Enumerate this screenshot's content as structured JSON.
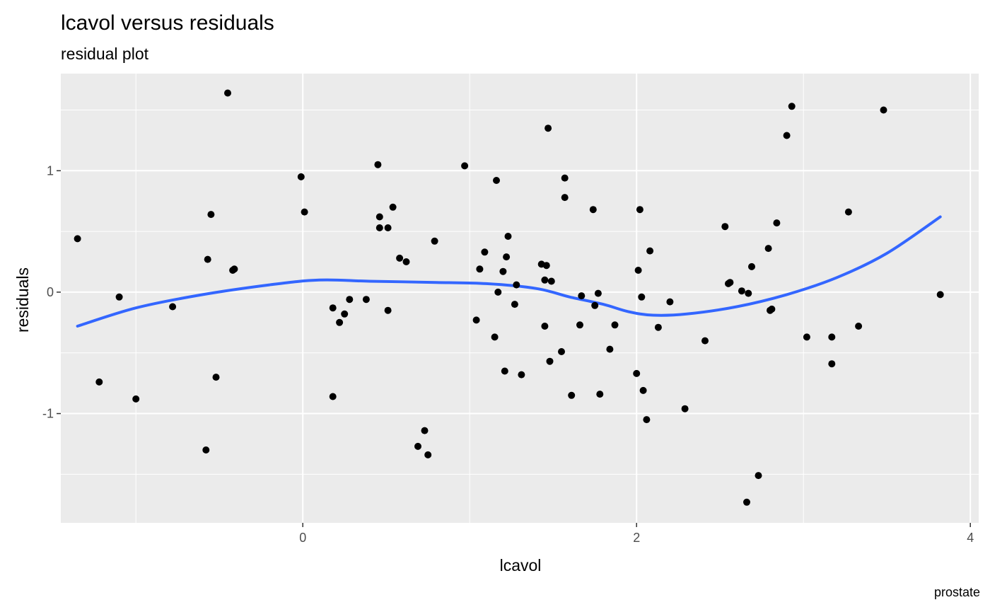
{
  "chart_data": {
    "type": "scatter",
    "title": "lcavol versus residuals",
    "subtitle": "residual plot",
    "xlabel": "lcavol",
    "ylabel": "residuals",
    "caption": "prostate",
    "xlim": [
      -1.45,
      4.05
    ],
    "ylim": [
      -1.9,
      1.8
    ],
    "x_ticks": [
      0,
      2,
      4
    ],
    "x_tick_labels": [
      "0",
      "2",
      "4"
    ],
    "y_ticks": [
      -1,
      0,
      1
    ],
    "y_tick_labels": [
      "-1",
      "0",
      "1"
    ],
    "grid": true,
    "panel_background": "#ebebeb",
    "point_color": "#000000",
    "smooth_color": "#3366ff",
    "points": [
      {
        "x": -1.35,
        "y": 0.44
      },
      {
        "x": -1.22,
        "y": -0.74
      },
      {
        "x": -1.1,
        "y": -0.04
      },
      {
        "x": -1.0,
        "y": -0.88
      },
      {
        "x": -0.78,
        "y": -0.12
      },
      {
        "x": -0.58,
        "y": -1.3
      },
      {
        "x": -0.57,
        "y": 0.27
      },
      {
        "x": -0.55,
        "y": 0.64
      },
      {
        "x": -0.52,
        "y": -0.7
      },
      {
        "x": -0.45,
        "y": 1.64
      },
      {
        "x": -0.42,
        "y": 0.18
      },
      {
        "x": -0.41,
        "y": 0.19
      },
      {
        "x": -0.01,
        "y": 0.95
      },
      {
        "x": 0.01,
        "y": 0.66
      },
      {
        "x": 0.18,
        "y": -0.13
      },
      {
        "x": 0.18,
        "y": -0.86
      },
      {
        "x": 0.22,
        "y": -0.25
      },
      {
        "x": 0.25,
        "y": -0.18
      },
      {
        "x": 0.28,
        "y": -0.06
      },
      {
        "x": 0.38,
        "y": -0.06
      },
      {
        "x": 0.45,
        "y": 1.05
      },
      {
        "x": 0.46,
        "y": 0.62
      },
      {
        "x": 0.46,
        "y": 0.53
      },
      {
        "x": 0.51,
        "y": 0.53
      },
      {
        "x": 0.51,
        "y": -0.15
      },
      {
        "x": 0.54,
        "y": 0.7
      },
      {
        "x": 0.58,
        "y": 0.28
      },
      {
        "x": 0.62,
        "y": 0.25
      },
      {
        "x": 0.69,
        "y": -1.27
      },
      {
        "x": 0.73,
        "y": -1.14
      },
      {
        "x": 0.75,
        "y": -1.34
      },
      {
        "x": 0.79,
        "y": 0.42
      },
      {
        "x": 0.97,
        "y": 1.04
      },
      {
        "x": 1.04,
        "y": -0.23
      },
      {
        "x": 1.06,
        "y": 0.19
      },
      {
        "x": 1.09,
        "y": 0.33
      },
      {
        "x": 1.15,
        "y": -0.37
      },
      {
        "x": 1.16,
        "y": 0.92
      },
      {
        "x": 1.17,
        "y": 0.0
      },
      {
        "x": 1.2,
        "y": 0.17
      },
      {
        "x": 1.21,
        "y": -0.65
      },
      {
        "x": 1.22,
        "y": 0.29
      },
      {
        "x": 1.23,
        "y": 0.46
      },
      {
        "x": 1.27,
        "y": -0.1
      },
      {
        "x": 1.28,
        "y": 0.06
      },
      {
        "x": 1.31,
        "y": -0.68
      },
      {
        "x": 1.43,
        "y": 0.23
      },
      {
        "x": 1.45,
        "y": 0.1
      },
      {
        "x": 1.45,
        "y": -0.28
      },
      {
        "x": 1.46,
        "y": 0.22
      },
      {
        "x": 1.47,
        "y": 1.35
      },
      {
        "x": 1.48,
        "y": -0.57
      },
      {
        "x": 1.49,
        "y": 0.09
      },
      {
        "x": 1.55,
        "y": -0.49
      },
      {
        "x": 1.57,
        "y": 0.94
      },
      {
        "x": 1.57,
        "y": 0.78
      },
      {
        "x": 1.61,
        "y": -0.85
      },
      {
        "x": 1.66,
        "y": -0.27
      },
      {
        "x": 1.67,
        "y": -0.03
      },
      {
        "x": 1.74,
        "y": 0.68
      },
      {
        "x": 1.75,
        "y": -0.11
      },
      {
        "x": 1.77,
        "y": -0.01
      },
      {
        "x": 1.78,
        "y": -0.84
      },
      {
        "x": 1.84,
        "y": -0.47
      },
      {
        "x": 1.87,
        "y": -0.27
      },
      {
        "x": 2.0,
        "y": -0.67
      },
      {
        "x": 2.01,
        "y": 0.18
      },
      {
        "x": 2.02,
        "y": 0.68
      },
      {
        "x": 2.03,
        "y": -0.04
      },
      {
        "x": 2.04,
        "y": -0.81
      },
      {
        "x": 2.06,
        "y": -1.05
      },
      {
        "x": 2.08,
        "y": 0.34
      },
      {
        "x": 2.13,
        "y": -0.29
      },
      {
        "x": 2.2,
        "y": -0.08
      },
      {
        "x": 2.29,
        "y": -0.96
      },
      {
        "x": 2.41,
        "y": -0.4
      },
      {
        "x": 2.53,
        "y": 0.54
      },
      {
        "x": 2.55,
        "y": 0.07
      },
      {
        "x": 2.56,
        "y": 0.08
      },
      {
        "x": 2.63,
        "y": 0.01
      },
      {
        "x": 2.66,
        "y": -1.73
      },
      {
        "x": 2.67,
        "y": -0.01
      },
      {
        "x": 2.69,
        "y": 0.21
      },
      {
        "x": 2.73,
        "y": -1.51
      },
      {
        "x": 2.79,
        "y": 0.36
      },
      {
        "x": 2.8,
        "y": -0.15
      },
      {
        "x": 2.81,
        "y": -0.14
      },
      {
        "x": 2.84,
        "y": 0.57
      },
      {
        "x": 2.9,
        "y": 1.29
      },
      {
        "x": 2.93,
        "y": 1.53
      },
      {
        "x": 3.02,
        "y": -0.37
      },
      {
        "x": 3.17,
        "y": -0.37
      },
      {
        "x": 3.17,
        "y": -0.59
      },
      {
        "x": 3.27,
        "y": 0.66
      },
      {
        "x": 3.33,
        "y": -0.28
      },
      {
        "x": 3.48,
        "y": 1.5
      },
      {
        "x": 3.82,
        "y": -0.02
      }
    ],
    "smooth": {
      "x": [
        -1.35,
        -1.0,
        -0.6,
        -0.2,
        0.1,
        0.4,
        0.8,
        1.1,
        1.4,
        1.6,
        1.8,
        1.95,
        2.1,
        2.3,
        2.6,
        2.9,
        3.2,
        3.5,
        3.82
      ],
      "y": [
        -0.28,
        -0.13,
        -0.02,
        0.06,
        0.1,
        0.09,
        0.08,
        0.07,
        0.03,
        -0.04,
        -0.1,
        -0.16,
        -0.19,
        -0.18,
        -0.12,
        -0.02,
        0.12,
        0.32,
        0.62
      ]
    }
  }
}
